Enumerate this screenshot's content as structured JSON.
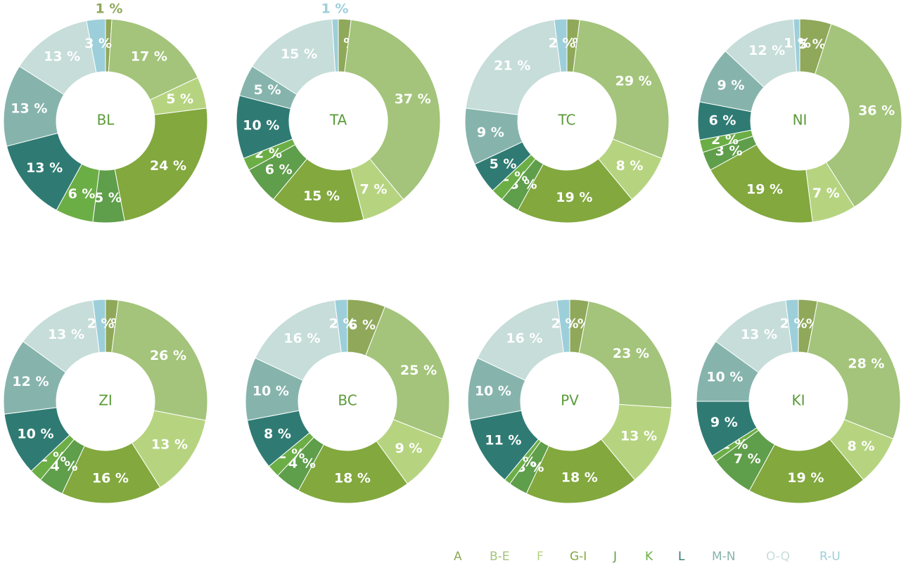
{
  "chart_data": [
    {
      "type": "pie",
      "title": "BL",
      "categories": [
        "A",
        "B-E",
        "F",
        "G-I",
        "J",
        "K",
        "L",
        "M-N",
        "O-Q",
        "R-U"
      ],
      "colors": [
        "#8fa85a",
        "#a3c47a",
        "#b6d480",
        "#82a83e",
        "#5f9e4a",
        "#6cae46",
        "#2f7b73",
        "#86b4ad",
        "#c6ddd9",
        "#9dcfda"
      ],
      "values": [
        1,
        17,
        5,
        24,
        5,
        6,
        13,
        13,
        13,
        3
      ],
      "value_labels": [
        "1 %",
        "17 %",
        "5 %",
        "24 %",
        "5 %",
        "6 %",
        "13 %",
        "13 %",
        "13 %",
        "3 %"
      ]
    },
    {
      "type": "pie",
      "title": "TA",
      "categories": [
        "A",
        "B-E",
        "F",
        "G-I",
        "J",
        "K",
        "L",
        "M-N",
        "O-Q",
        "R-U"
      ],
      "colors": [
        "#8fa85a",
        "#a3c47a",
        "#b6d480",
        "#82a83e",
        "#5f9e4a",
        "#6cae46",
        "#2f7b73",
        "#86b4ad",
        "#c6ddd9",
        "#9dcfda"
      ],
      "values": [
        2,
        37,
        7,
        15,
        6,
        2,
        10,
        5,
        15,
        1
      ],
      "value_labels": [
        "2 %",
        "37 %",
        "7 %",
        "15 %",
        "6 %",
        "2 %",
        "10 %",
        "5 %",
        "15 %",
        "1 %"
      ]
    },
    {
      "type": "pie",
      "title": "TC",
      "categories": [
        "A",
        "B-E",
        "F",
        "G-I",
        "J",
        "K",
        "L",
        "M-N",
        "O-Q",
        "R-U"
      ],
      "colors": [
        "#8fa85a",
        "#a3c47a",
        "#b6d480",
        "#82a83e",
        "#5f9e4a",
        "#6cae46",
        "#2f7b73",
        "#86b4ad",
        "#c6ddd9",
        "#9dcfda"
      ],
      "values": [
        2,
        29,
        8,
        19,
        3,
        2,
        5,
        9,
        21,
        2
      ],
      "value_labels": [
        "2 %",
        "29 %",
        "8 %",
        "19 %",
        "3 %",
        "2 %",
        "5 %",
        "9 %",
        "21 %",
        "2 %"
      ]
    },
    {
      "type": "pie",
      "title": "NI",
      "categories": [
        "A",
        "B-E",
        "F",
        "G-I",
        "J",
        "K",
        "L",
        "M-N",
        "O-Q",
        "R-U"
      ],
      "colors": [
        "#8fa85a",
        "#a3c47a",
        "#b6d480",
        "#82a83e",
        "#5f9e4a",
        "#6cae46",
        "#2f7b73",
        "#86b4ad",
        "#c6ddd9",
        "#9dcfda"
      ],
      "values": [
        5,
        36,
        7,
        19,
        3,
        2,
        6,
        9,
        12,
        1
      ],
      "value_labels": [
        "5 %",
        "36 %",
        "7 %",
        "19 %",
        "3 %",
        "2 %",
        "6 %",
        "9 %",
        "12 %",
        "1 %"
      ]
    },
    {
      "type": "pie",
      "title": "ZI",
      "categories": [
        "A",
        "B-E",
        "F",
        "G-I",
        "J",
        "K",
        "L",
        "M-N",
        "O-Q",
        "R-U"
      ],
      "colors": [
        "#8fa85a",
        "#a3c47a",
        "#b6d480",
        "#82a83e",
        "#5f9e4a",
        "#6cae46",
        "#2f7b73",
        "#86b4ad",
        "#c6ddd9",
        "#9dcfda"
      ],
      "values": [
        2,
        26,
        13,
        16,
        4,
        2,
        10,
        12,
        13,
        2
      ],
      "value_labels": [
        "2 %",
        "26 %",
        "13 %",
        "16 %",
        "4 %",
        "2 %",
        "10 %",
        "12 %",
        "13 %",
        "2 %"
      ]
    },
    {
      "type": "pie",
      "title": "BC",
      "categories": [
        "A",
        "B-E",
        "F",
        "G-I",
        "J",
        "K",
        "L",
        "M-N",
        "O-Q",
        "R-U"
      ],
      "colors": [
        "#8fa85a",
        "#a3c47a",
        "#b6d480",
        "#82a83e",
        "#5f9e4a",
        "#6cae46",
        "#2f7b73",
        "#86b4ad",
        "#c6ddd9",
        "#9dcfda"
      ],
      "values": [
        6,
        25,
        9,
        18,
        4,
        2,
        8,
        10,
        16,
        2
      ],
      "value_labels": [
        "6 %",
        "25 %",
        "9 %",
        "18 %",
        "4 %",
        "2 %",
        "8 %",
        "10 %",
        "16 %",
        "2 %"
      ]
    },
    {
      "type": "pie",
      "title": "PV",
      "categories": [
        "A",
        "B-E",
        "F",
        "G-I",
        "J",
        "K",
        "L",
        "M-N",
        "O-Q",
        "R-U"
      ],
      "colors": [
        "#8fa85a",
        "#a3c47a",
        "#b6d480",
        "#82a83e",
        "#5f9e4a",
        "#6cae46",
        "#2f7b73",
        "#86b4ad",
        "#c6ddd9",
        "#9dcfda"
      ],
      "values": [
        3,
        23,
        13,
        18,
        3,
        1,
        11,
        10,
        16,
        2
      ],
      "value_labels": [
        "3 %",
        "23 %",
        "13 %",
        "18 %",
        "3 %",
        "1 %",
        "11 %",
        "10 %",
        "16 %",
        "2 %"
      ]
    },
    {
      "type": "pie",
      "title": "KI",
      "categories": [
        "A",
        "B-E",
        "F",
        "G-I",
        "J",
        "K",
        "L",
        "M-N",
        "O-Q",
        "R-U"
      ],
      "colors": [
        "#8fa85a",
        "#a3c47a",
        "#b6d480",
        "#82a83e",
        "#5f9e4a",
        "#6cae46",
        "#2f7b73",
        "#86b4ad",
        "#c6ddd9",
        "#9dcfda"
      ],
      "values": [
        3,
        28,
        8,
        19,
        7,
        1,
        9,
        10,
        13,
        2
      ],
      "value_labels": [
        "3 %",
        "28 %",
        "8 %",
        "19 %",
        "7 %",
        "1 %",
        "9 %",
        "10 %",
        "13 %",
        "2 %"
      ]
    }
  ]
}
